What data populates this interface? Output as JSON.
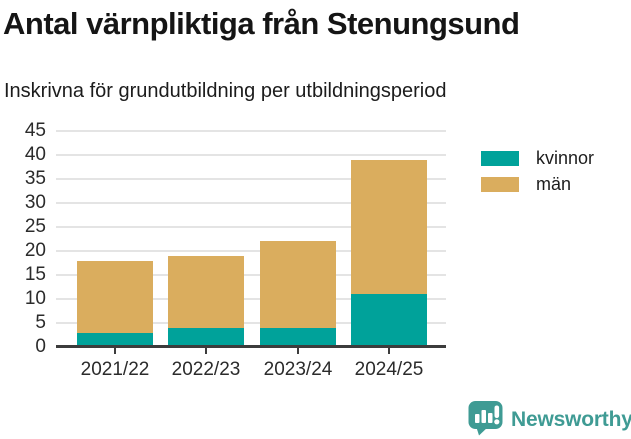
{
  "header": {
    "title": "Antal värnpliktiga från Stenungsund",
    "subtitle": "Inskrivna för grundutbildning per utbildningsperiod"
  },
  "chart_data": {
    "type": "bar",
    "stacked": true,
    "title": "Antal värnpliktiga från Stenungsund",
    "subtitle": "Inskrivna för grundutbildning per utbildningsperiod",
    "categories": [
      "2021/22",
      "2022/23",
      "2023/24",
      "2024/25"
    ],
    "series": [
      {
        "name": "kvinnor",
        "color": "#00a29a",
        "values": [
          3,
          4,
          4,
          11
        ]
      },
      {
        "name": "män",
        "color": "#daad5e",
        "values": [
          15,
          15,
          18,
          28
        ]
      }
    ],
    "totals": [
      18,
      19,
      22,
      39
    ],
    "xlabel": "",
    "ylabel": "",
    "ylim": [
      0,
      45
    ],
    "yticks": [
      0,
      5,
      10,
      15,
      20,
      25,
      30,
      35,
      40,
      45
    ],
    "grid": true,
    "legend_position": "right"
  },
  "legend": {
    "items": [
      {
        "label": "kvinnor",
        "color": "#00a29a"
      },
      {
        "label": "män",
        "color": "#daad5e"
      }
    ]
  },
  "footer": {
    "brand": "Newsworthy",
    "brand_color": "#3f9b94",
    "logo_icon": "newsworthy-speech-bubble-chart-icon"
  }
}
